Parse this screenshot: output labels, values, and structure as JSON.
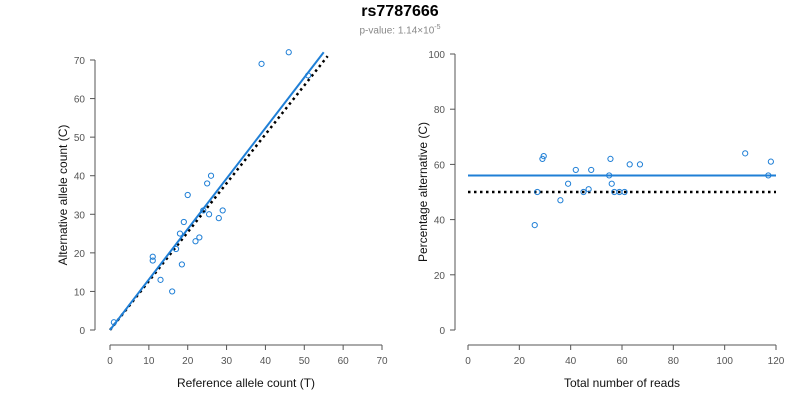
{
  "header": {
    "title": "rs7787666",
    "subtitle_prefix": "p-value: 1.14×10",
    "subtitle_exp": "-5"
  },
  "colors": {
    "points": "#1f7fd6",
    "fit_line": "#1f7fd6",
    "reference_line": "#000000"
  },
  "chart_data": [
    {
      "type": "scatter",
      "xlabel": "Reference allele count (T)",
      "ylabel": "Alternative allele count (C)",
      "xlim": [
        0,
        70
      ],
      "ylim": [
        0,
        70
      ],
      "xticks": [
        0,
        10,
        20,
        30,
        40,
        50,
        60,
        70
      ],
      "yticks": [
        0,
        10,
        20,
        30,
        40,
        50,
        60,
        70
      ],
      "grid": false,
      "points": [
        [
          1,
          2
        ],
        [
          11,
          18
        ],
        [
          11,
          19
        ],
        [
          13,
          13
        ],
        [
          16,
          10
        ],
        [
          17,
          21
        ],
        [
          18,
          25
        ],
        [
          18.5,
          17
        ],
        [
          19,
          28
        ],
        [
          20,
          35
        ],
        [
          22,
          23
        ],
        [
          23,
          24
        ],
        [
          24,
          31
        ],
        [
          25,
          38
        ],
        [
          25.5,
          30
        ],
        [
          26,
          40
        ],
        [
          28,
          29
        ],
        [
          29,
          31
        ],
        [
          39,
          69
        ],
        [
          46,
          72
        ],
        [
          51,
          66
        ]
      ],
      "fit_line": {
        "x": [
          0,
          55
        ],
        "y": [
          0,
          72
        ]
      },
      "reference_line": {
        "x": [
          0,
          56
        ],
        "y": [
          0,
          71
        ]
      }
    },
    {
      "type": "scatter",
      "xlabel": "Total number of reads",
      "ylabel": "Percentage alternative (C)",
      "xlim": [
        0,
        120
      ],
      "ylim": [
        0,
        100
      ],
      "xticks": [
        0,
        20,
        40,
        60,
        80,
        100,
        120
      ],
      "yticks": [
        0,
        20,
        40,
        60,
        80,
        100
      ],
      "grid": false,
      "points": [
        [
          26,
          38
        ],
        [
          27,
          50
        ],
        [
          29,
          62
        ],
        [
          29.5,
          63
        ],
        [
          36,
          47
        ],
        [
          39,
          53
        ],
        [
          42,
          58
        ],
        [
          45,
          50
        ],
        [
          47,
          51
        ],
        [
          48,
          58
        ],
        [
          55,
          56
        ],
        [
          55.5,
          62
        ],
        [
          56,
          53
        ],
        [
          57,
          50
        ],
        [
          59,
          50
        ],
        [
          61,
          50
        ],
        [
          63,
          60
        ],
        [
          67,
          60
        ],
        [
          108,
          64
        ],
        [
          117,
          56
        ],
        [
          118,
          61
        ]
      ],
      "fit_line": {
        "x": [
          0,
          120
        ],
        "y": [
          56,
          56
        ]
      },
      "reference_line": {
        "x": [
          0,
          120
        ],
        "y": [
          50,
          50
        ]
      }
    }
  ]
}
